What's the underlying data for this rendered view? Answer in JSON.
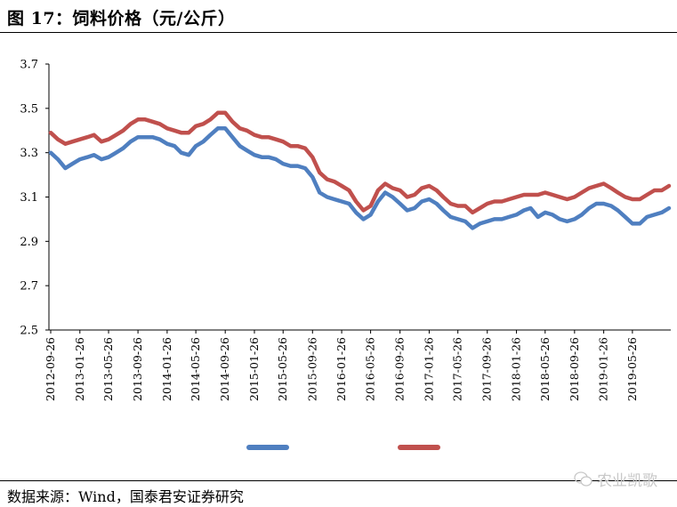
{
  "header": {
    "title": "图 17：饲料价格（元/公斤）"
  },
  "footer": {
    "source": "数据来源：Wind，国泰君安证券研究",
    "watermark": "农业凯歌"
  },
  "chart_data": {
    "type": "line",
    "title": "图 17：饲料价格（元/公斤）",
    "xlabel": "",
    "ylabel": "",
    "ylim": [
      2.5,
      3.7
    ],
    "yticks": [
      "3.7",
      "3.5",
      "3.3",
      "3.1",
      "2.9",
      "2.7",
      "2.5"
    ],
    "xticks": [
      "2012-09-26",
      "2013-01-26",
      "2013-05-26",
      "2013-09-26",
      "2014-01-26",
      "2014-05-26",
      "2014-09-26",
      "2015-01-26",
      "2015-05-26",
      "2015-09-26",
      "2016-01-26",
      "2016-05-26",
      "2016-09-26",
      "2017-01-26",
      "2017-05-26",
      "2017-09-26",
      "2018-01-26",
      "2018-05-26",
      "2018-09-26",
      "2019-01-26",
      "2019-05-26"
    ],
    "grid": false,
    "legend_position": "bottom",
    "colors": {
      "blue": "#4f7fc0",
      "red": "#c0504d"
    },
    "series": [
      {
        "color": "#4f7fc0",
        "points": [
          [
            "2012-09-26",
            3.3
          ],
          [
            "2012-10-26",
            3.27
          ],
          [
            "2012-11-26",
            3.23
          ],
          [
            "2012-12-26",
            3.25
          ],
          [
            "2013-01-26",
            3.27
          ],
          [
            "2013-02-26",
            3.28
          ],
          [
            "2013-03-26",
            3.29
          ],
          [
            "2013-04-26",
            3.27
          ],
          [
            "2013-05-26",
            3.28
          ],
          [
            "2013-06-26",
            3.3
          ],
          [
            "2013-07-26",
            3.32
          ],
          [
            "2013-08-26",
            3.35
          ],
          [
            "2013-09-26",
            3.37
          ],
          [
            "2013-10-26",
            3.37
          ],
          [
            "2013-11-26",
            3.37
          ],
          [
            "2013-12-26",
            3.36
          ],
          [
            "2014-01-26",
            3.34
          ],
          [
            "2014-02-26",
            3.33
          ],
          [
            "2014-03-26",
            3.3
          ],
          [
            "2014-04-26",
            3.29
          ],
          [
            "2014-05-26",
            3.33
          ],
          [
            "2014-06-26",
            3.35
          ],
          [
            "2014-07-26",
            3.38
          ],
          [
            "2014-08-26",
            3.41
          ],
          [
            "2014-09-26",
            3.41
          ],
          [
            "2014-10-26",
            3.37
          ],
          [
            "2014-11-26",
            3.33
          ],
          [
            "2014-12-26",
            3.31
          ],
          [
            "2015-01-26",
            3.29
          ],
          [
            "2015-02-26",
            3.28
          ],
          [
            "2015-03-26",
            3.28
          ],
          [
            "2015-04-26",
            3.27
          ],
          [
            "2015-05-26",
            3.25
          ],
          [
            "2015-06-26",
            3.24
          ],
          [
            "2015-07-26",
            3.24
          ],
          [
            "2015-08-26",
            3.23
          ],
          [
            "2015-09-26",
            3.19
          ],
          [
            "2015-10-26",
            3.12
          ],
          [
            "2015-11-26",
            3.1
          ],
          [
            "2015-12-26",
            3.09
          ],
          [
            "2016-01-26",
            3.08
          ],
          [
            "2016-02-26",
            3.07
          ],
          [
            "2016-03-26",
            3.03
          ],
          [
            "2016-04-26",
            3.0
          ],
          [
            "2016-05-26",
            3.02
          ],
          [
            "2016-06-26",
            3.08
          ],
          [
            "2016-07-26",
            3.12
          ],
          [
            "2016-08-26",
            3.1
          ],
          [
            "2016-09-26",
            3.07
          ],
          [
            "2016-10-26",
            3.04
          ],
          [
            "2016-11-26",
            3.05
          ],
          [
            "2016-12-26",
            3.08
          ],
          [
            "2017-01-26",
            3.09
          ],
          [
            "2017-02-26",
            3.07
          ],
          [
            "2017-03-26",
            3.04
          ],
          [
            "2017-04-26",
            3.01
          ],
          [
            "2017-05-26",
            3.0
          ],
          [
            "2017-06-26",
            2.99
          ],
          [
            "2017-07-26",
            2.96
          ],
          [
            "2017-08-26",
            2.98
          ],
          [
            "2017-09-26",
            2.99
          ],
          [
            "2017-10-26",
            3.0
          ],
          [
            "2017-11-26",
            3.0
          ],
          [
            "2017-12-26",
            3.01
          ],
          [
            "2018-01-26",
            3.02
          ],
          [
            "2018-02-26",
            3.04
          ],
          [
            "2018-03-26",
            3.05
          ],
          [
            "2018-04-26",
            3.01
          ],
          [
            "2018-05-26",
            3.03
          ],
          [
            "2018-06-26",
            3.02
          ],
          [
            "2018-07-26",
            3.0
          ],
          [
            "2018-08-26",
            2.99
          ],
          [
            "2018-09-26",
            3.0
          ],
          [
            "2018-10-26",
            3.02
          ],
          [
            "2018-11-26",
            3.05
          ],
          [
            "2018-12-26",
            3.07
          ],
          [
            "2019-01-26",
            3.07
          ],
          [
            "2019-02-26",
            3.06
          ],
          [
            "2019-03-26",
            3.04
          ],
          [
            "2019-04-26",
            3.01
          ],
          [
            "2019-05-26",
            2.98
          ],
          [
            "2019-06-26",
            2.98
          ],
          [
            "2019-07-26",
            3.01
          ],
          [
            "2019-08-26",
            3.02
          ],
          [
            "2019-09-26",
            3.03
          ],
          [
            "2019-10-26",
            3.05
          ]
        ]
      },
      {
        "color": "#c0504d",
        "points": [
          [
            "2012-09-26",
            3.39
          ],
          [
            "2012-10-26",
            3.36
          ],
          [
            "2012-11-26",
            3.34
          ],
          [
            "2012-12-26",
            3.35
          ],
          [
            "2013-01-26",
            3.36
          ],
          [
            "2013-02-26",
            3.37
          ],
          [
            "2013-03-26",
            3.38
          ],
          [
            "2013-04-26",
            3.35
          ],
          [
            "2013-05-26",
            3.36
          ],
          [
            "2013-06-26",
            3.38
          ],
          [
            "2013-07-26",
            3.4
          ],
          [
            "2013-08-26",
            3.43
          ],
          [
            "2013-09-26",
            3.45
          ],
          [
            "2013-10-26",
            3.45
          ],
          [
            "2013-11-26",
            3.44
          ],
          [
            "2013-12-26",
            3.43
          ],
          [
            "2014-01-26",
            3.41
          ],
          [
            "2014-02-26",
            3.4
          ],
          [
            "2014-03-26",
            3.39
          ],
          [
            "2014-04-26",
            3.39
          ],
          [
            "2014-05-26",
            3.42
          ],
          [
            "2014-06-26",
            3.43
          ],
          [
            "2014-07-26",
            3.45
          ],
          [
            "2014-08-26",
            3.48
          ],
          [
            "2014-09-26",
            3.48
          ],
          [
            "2014-10-26",
            3.44
          ],
          [
            "2014-11-26",
            3.41
          ],
          [
            "2014-12-26",
            3.4
          ],
          [
            "2015-01-26",
            3.38
          ],
          [
            "2015-02-26",
            3.37
          ],
          [
            "2015-03-26",
            3.37
          ],
          [
            "2015-04-26",
            3.36
          ],
          [
            "2015-05-26",
            3.35
          ],
          [
            "2015-06-26",
            3.33
          ],
          [
            "2015-07-26",
            3.33
          ],
          [
            "2015-08-26",
            3.32
          ],
          [
            "2015-09-26",
            3.28
          ],
          [
            "2015-10-26",
            3.21
          ],
          [
            "2015-11-26",
            3.18
          ],
          [
            "2015-12-26",
            3.17
          ],
          [
            "2016-01-26",
            3.15
          ],
          [
            "2016-02-26",
            3.13
          ],
          [
            "2016-03-26",
            3.08
          ],
          [
            "2016-04-26",
            3.04
          ],
          [
            "2016-05-26",
            3.06
          ],
          [
            "2016-06-26",
            3.13
          ],
          [
            "2016-07-26",
            3.16
          ],
          [
            "2016-08-26",
            3.14
          ],
          [
            "2016-09-26",
            3.13
          ],
          [
            "2016-10-26",
            3.1
          ],
          [
            "2016-11-26",
            3.11
          ],
          [
            "2016-12-26",
            3.14
          ],
          [
            "2017-01-26",
            3.15
          ],
          [
            "2017-02-26",
            3.13
          ],
          [
            "2017-03-26",
            3.1
          ],
          [
            "2017-04-26",
            3.07
          ],
          [
            "2017-05-26",
            3.06
          ],
          [
            "2017-06-26",
            3.06
          ],
          [
            "2017-07-26",
            3.03
          ],
          [
            "2017-08-26",
            3.05
          ],
          [
            "2017-09-26",
            3.07
          ],
          [
            "2017-10-26",
            3.08
          ],
          [
            "2017-11-26",
            3.08
          ],
          [
            "2017-12-26",
            3.09
          ],
          [
            "2018-01-26",
            3.1
          ],
          [
            "2018-02-26",
            3.11
          ],
          [
            "2018-03-26",
            3.11
          ],
          [
            "2018-04-26",
            3.11
          ],
          [
            "2018-05-26",
            3.12
          ],
          [
            "2018-06-26",
            3.11
          ],
          [
            "2018-07-26",
            3.1
          ],
          [
            "2018-08-26",
            3.09
          ],
          [
            "2018-09-26",
            3.1
          ],
          [
            "2018-10-26",
            3.12
          ],
          [
            "2018-11-26",
            3.14
          ],
          [
            "2018-12-26",
            3.15
          ],
          [
            "2019-01-26",
            3.16
          ],
          [
            "2019-02-26",
            3.14
          ],
          [
            "2019-03-26",
            3.12
          ],
          [
            "2019-04-26",
            3.1
          ],
          [
            "2019-05-26",
            3.09
          ],
          [
            "2019-06-26",
            3.09
          ],
          [
            "2019-07-26",
            3.11
          ],
          [
            "2019-08-26",
            3.13
          ],
          [
            "2019-09-26",
            3.13
          ],
          [
            "2019-10-26",
            3.15
          ]
        ]
      }
    ]
  }
}
